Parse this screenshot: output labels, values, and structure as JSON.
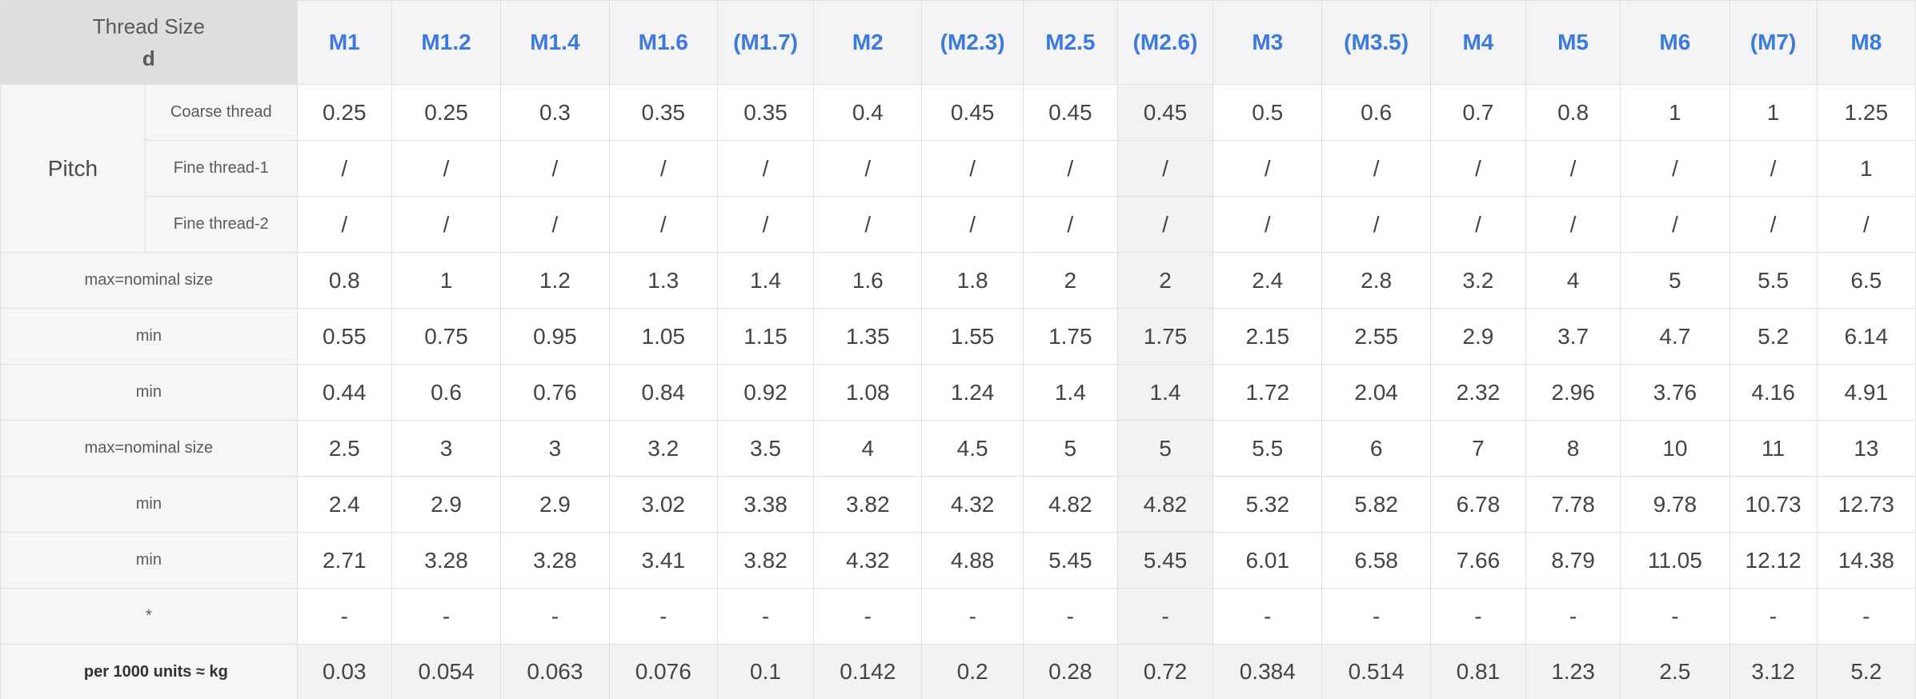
{
  "header": {
    "title_line1": "Thread Size",
    "title_line2": "d",
    "sizes": [
      "M1",
      "M1.2",
      "M1.4",
      "M1.6",
      "(M1.7)",
      "M2",
      "(M2.3)",
      "M2.5",
      "(M2.6)",
      "M3",
      "(M3.5)",
      "M4",
      "M5",
      "M6",
      "(M7)",
      "M8"
    ]
  },
  "pitch": {
    "label": "Pitch",
    "rows": [
      {
        "label": "Coarse thread",
        "values": [
          "0.25",
          "0.25",
          "0.3",
          "0.35",
          "0.35",
          "0.4",
          "0.45",
          "0.45",
          "0.45",
          "0.5",
          "0.6",
          "0.7",
          "0.8",
          "1",
          "1",
          "1.25"
        ]
      },
      {
        "label": "Fine thread-1",
        "values": [
          "/",
          "/",
          "/",
          "/",
          "/",
          "/",
          "/",
          "/",
          "/",
          "/",
          "/",
          "/",
          "/",
          "/",
          "/",
          "1"
        ]
      },
      {
        "label": "Fine thread-2",
        "values": [
          "/",
          "/",
          "/",
          "/",
          "/",
          "/",
          "/",
          "/",
          "/",
          "/",
          "/",
          "/",
          "/",
          "/",
          "/",
          "/"
        ]
      }
    ]
  },
  "rows": [
    {
      "label": "max=nominal size",
      "values": [
        "0.8",
        "1",
        "1.2",
        "1.3",
        "1.4",
        "1.6",
        "1.8",
        "2",
        "2",
        "2.4",
        "2.8",
        "3.2",
        "4",
        "5",
        "5.5",
        "6.5"
      ]
    },
    {
      "label": "min",
      "values": [
        "0.55",
        "0.75",
        "0.95",
        "1.05",
        "1.15",
        "1.35",
        "1.55",
        "1.75",
        "1.75",
        "2.15",
        "2.55",
        "2.9",
        "3.7",
        "4.7",
        "5.2",
        "6.14"
      ]
    },
    {
      "label": "min",
      "values": [
        "0.44",
        "0.6",
        "0.76",
        "0.84",
        "0.92",
        "1.08",
        "1.24",
        "1.4",
        "1.4",
        "1.72",
        "2.04",
        "2.32",
        "2.96",
        "3.76",
        "4.16",
        "4.91"
      ]
    },
    {
      "label": "max=nominal size",
      "values": [
        "2.5",
        "3",
        "3",
        "3.2",
        "3.5",
        "4",
        "4.5",
        "5",
        "5",
        "5.5",
        "6",
        "7",
        "8",
        "10",
        "11",
        "13"
      ]
    },
    {
      "label": "min",
      "values": [
        "2.4",
        "2.9",
        "2.9",
        "3.02",
        "3.38",
        "3.82",
        "4.32",
        "4.82",
        "4.82",
        "5.32",
        "5.82",
        "6.78",
        "7.78",
        "9.78",
        "10.73",
        "12.73"
      ]
    },
    {
      "label": "min",
      "values": [
        "2.71",
        "3.28",
        "3.28",
        "3.41",
        "3.82",
        "4.32",
        "4.88",
        "5.45",
        "5.45",
        "6.01",
        "6.58",
        "7.66",
        "8.79",
        "11.05",
        "12.12",
        "14.38"
      ]
    },
    {
      "label": "*",
      "values": [
        "-",
        "-",
        "-",
        "-",
        "-",
        "-",
        "-",
        "-",
        "-",
        "-",
        "-",
        "-",
        "-",
        "-",
        "-",
        "-"
      ]
    }
  ],
  "weight_row": {
    "label": "per 1000 units ≈ kg",
    "values": [
      "0.03",
      "0.054",
      "0.063",
      "0.076",
      "0.1",
      "0.142",
      "0.2",
      "0.28",
      "0.72",
      "0.384",
      "0.514",
      "0.81",
      "1.23",
      "2.5",
      "3.12",
      "5.2"
    ]
  },
  "highlight_column_index": 8,
  "colors": {
    "size_header_text": "#3b7bdd",
    "corner_bg": "#dedede",
    "label_bg": "#f6f6f8",
    "highlight_bg": "#f2f2f2"
  }
}
